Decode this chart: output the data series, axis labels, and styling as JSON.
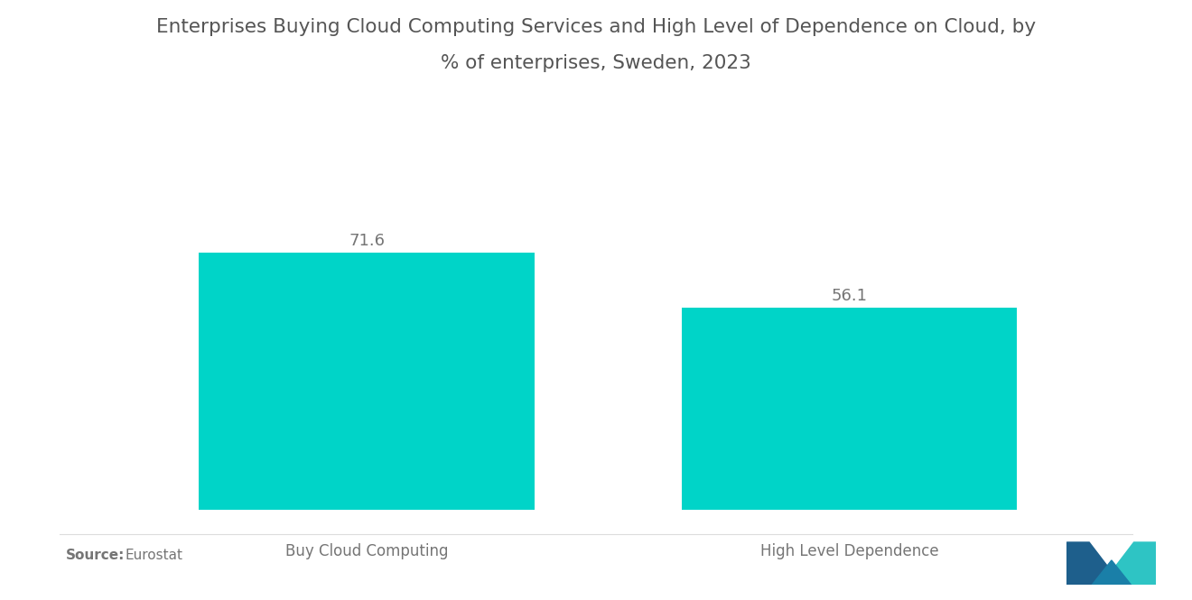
{
  "title_line1": "Enterprises Buying Cloud Computing Services and High Level of Dependence on Cloud, by",
  "title_line2": "% of enterprises, Sweden, 2023",
  "categories": [
    "Buy Cloud Computing",
    "High Level Dependence"
  ],
  "values": [
    71.6,
    56.1
  ],
  "bar_color": "#00D4C8",
  "bar_positions": [
    0.27,
    0.73
  ],
  "bar_width": 0.32,
  "xlim": [
    0,
    1
  ],
  "ylim": [
    0,
    95
  ],
  "value_labels": [
    "71.6",
    "56.1"
  ],
  "source_bold": "Source:",
  "source_normal": "  Eurostat",
  "title_fontsize": 15.5,
  "label_fontsize": 12,
  "value_fontsize": 13,
  "source_fontsize": 11,
  "background_color": "#ffffff",
  "text_color": "#757575",
  "title_color": "#555555",
  "logo_dark": "#1e5f8c",
  "logo_mid": "#1a7fa8",
  "logo_light": "#2ec4c4"
}
